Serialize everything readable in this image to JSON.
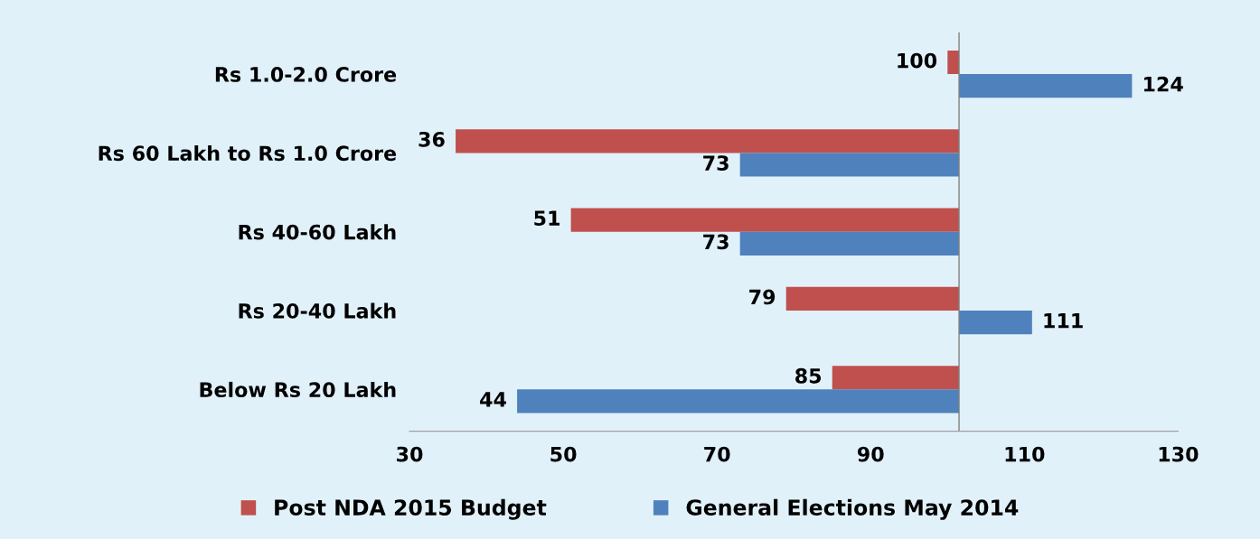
{
  "chart_data": {
    "type": "bar",
    "orientation": "horizontal",
    "categories": [
      "Rs 1.0-2.0 Crore",
      "Rs 60 Lakh to Rs 1.0 Crore",
      "Rs 40-60 Lakh",
      "Rs 20-40 Lakh",
      "Below Rs 20 Lakh"
    ],
    "series": [
      {
        "name": "Post NDA 2015 Budget",
        "color": "#c0504d",
        "base": [
          101.5,
          101.5,
          101.5,
          101.5,
          101.5
        ],
        "values": [
          -1.5,
          -65.5,
          -50.5,
          -22.5,
          -16.5
        ],
        "value_labels": [
          "100",
          "36",
          "51",
          "79",
          "85"
        ]
      },
      {
        "name": "General Elections May 2014",
        "color": "#4f81bd",
        "base": [
          101.5,
          101.5,
          101.5,
          101.5,
          101.5
        ],
        "values": [
          22.5,
          -28.5,
          -28.5,
          9.5,
          -57.5
        ],
        "value_labels": [
          "124",
          "73",
          "73",
          "111",
          "44"
        ]
      }
    ],
    "xlim": [
      30,
      130
    ],
    "xticks": [
      30,
      50,
      70,
      90,
      110,
      130
    ],
    "ref_lines": [
      {
        "axis": "x",
        "value": 101.5,
        "color": "#808080"
      }
    ],
    "grid": false,
    "legend": "bottom"
  }
}
